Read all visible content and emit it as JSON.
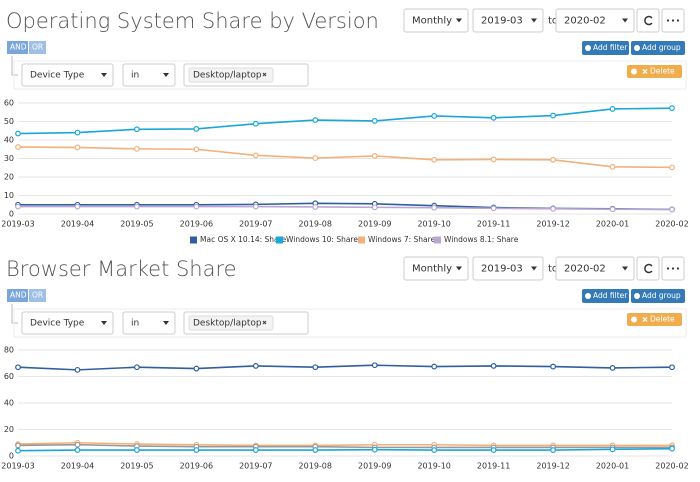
{
  "chart_data": [
    {
      "type": "line",
      "title": "Operating System Share by Version",
      "x": [
        "2019-03",
        "2019-04",
        "2019-05",
        "2019-06",
        "2019-07",
        "2019-08",
        "2019-09",
        "2019-10",
        "2019-11",
        "2019-12",
        "2020-01",
        "2020-02"
      ],
      "ylim": [
        0,
        60
      ],
      "yticks": [
        0,
        10,
        20,
        30,
        40,
        50,
        60
      ],
      "grid": true,
      "series": [
        {
          "name": "Mac OS X 10.14: Share",
          "color": "#2f5f9e",
          "values": [
            5,
            5,
            5,
            5,
            5.2,
            5.8,
            5.5,
            4.5,
            3.5,
            3,
            2.8,
            2.5
          ]
        },
        {
          "name": "Windows 10: Share",
          "color": "#1ba6d8",
          "values": [
            43.5,
            44,
            45.8,
            46,
            48.8,
            50.8,
            50.3,
            53,
            52,
            53.2,
            56.8,
            57.2
          ]
        },
        {
          "name": "Windows 7: Share",
          "color": "#f2b07a",
          "values": [
            36.2,
            36,
            35.2,
            35,
            31.7,
            30.2,
            31.4,
            29.3,
            29.5,
            29.3,
            25.5,
            25.2
          ]
        },
        {
          "name": "Windows 8.1: Share",
          "color": "#b9a6d6",
          "values": [
            4,
            4,
            4,
            4,
            4,
            3.8,
            3.6,
            3.4,
            3.1,
            2.8,
            2.6,
            2.4
          ]
        }
      ]
    },
    {
      "type": "line",
      "title": "Browser Market Share",
      "x": [
        "2019-03",
        "2019-04",
        "2019-05",
        "2019-06",
        "2019-07",
        "2019-08",
        "2019-09",
        "2019-10",
        "2019-11",
        "2019-12",
        "2020-01",
        "2020-02"
      ],
      "ylim": [
        0,
        80
      ],
      "yticks": [
        0,
        20,
        40,
        60,
        80
      ],
      "grid": true,
      "series": [
        {
          "color": "#2f5f9e",
          "values": [
            67,
            65,
            67,
            66,
            68,
            67,
            68.5,
            67.5,
            68,
            67.5,
            66.5,
            67
          ]
        },
        {
          "color": "#f2b07a",
          "values": [
            9,
            10,
            9,
            8.5,
            8,
            8,
            8.5,
            8.5,
            8,
            8,
            8,
            8
          ]
        },
        {
          "color": "#999999",
          "values": [
            8,
            8.5,
            7.5,
            7,
            7,
            7,
            6.5,
            6.5,
            6.5,
            6.5,
            6.5,
            6.5
          ]
        },
        {
          "color": "#1ba6d8",
          "values": [
            4,
            4.5,
            4.5,
            4.5,
            4.5,
            4.5,
            4.8,
            4.5,
            4.5,
            4.5,
            5,
            5.5
          ]
        }
      ]
    }
  ],
  "panels": [
    {
      "granularity": "Monthly",
      "from": "2019-03",
      "to_label": "to",
      "to": "2020-02",
      "and": "AND",
      "or": "OR",
      "add_filter": "Add filter",
      "add_group": "Add group",
      "field": "Device Type",
      "op": "in",
      "value": "Desktop/laptop",
      "delete": "Delete"
    },
    {
      "granularity": "Monthly",
      "from": "2019-03",
      "to_label": "to",
      "to": "2020-02",
      "and": "AND",
      "or": "OR",
      "add_filter": "Add filter",
      "add_group": "Add group",
      "field": "Device Type",
      "op": "in",
      "value": "Desktop/laptop",
      "delete": "Delete"
    }
  ]
}
